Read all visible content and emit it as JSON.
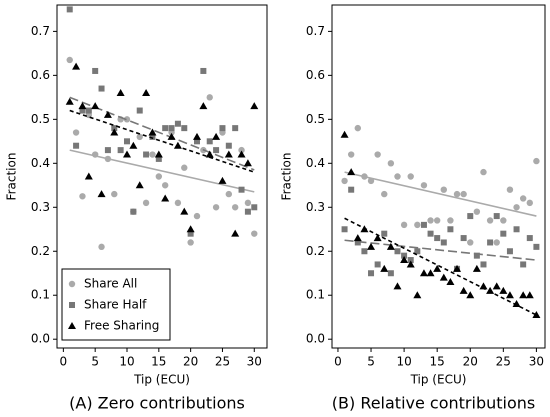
{
  "chart_data": [
    {
      "type": "scatter",
      "title": "(A) Zero contributions",
      "xlabel": "Tip (ECU)",
      "ylabel": "Fraction",
      "x": [
        1,
        2,
        3,
        4,
        5,
        6,
        7,
        8,
        9,
        10,
        11,
        12,
        13,
        14,
        15,
        16,
        17,
        18,
        19,
        20,
        21,
        22,
        23,
        24,
        25,
        26,
        27,
        28,
        29,
        30
      ],
      "xlim": [
        -1,
        32
      ],
      "xticks": [
        0,
        5,
        10,
        15,
        20,
        25,
        30
      ],
      "ylim": [
        -0.02,
        0.76
      ],
      "yticks": [
        {
          "value": 0,
          "label": "0.0"
        },
        0.1,
        0.2,
        0.3,
        0.4,
        0.5,
        0.6,
        0.7
      ],
      "legend": "lower left",
      "trend_x": [
        1,
        30
      ],
      "series": [
        {
          "name": "Share All",
          "color": "#aaaaaa",
          "marker": "circle",
          "dash": "solid",
          "values": [
            0.635,
            0.47,
            0.325,
            0.51,
            0.42,
            0.21,
            0.41,
            0.33,
            0.5,
            0.5,
            0.29,
            0.46,
            0.31,
            0.42,
            0.37,
            0.35,
            0.47,
            0.31,
            0.39,
            0.22,
            0.28,
            0.43,
            0.55,
            0.3,
            0.47,
            0.33,
            0.3,
            0.43,
            0.31,
            0.24
          ],
          "trend": [
            0.43,
            0.335
          ]
        },
        {
          "name": "Share Half",
          "color": "#777777",
          "marker": "square",
          "dash": "long",
          "values": [
            0.75,
            0.44,
            0.52,
            0.52,
            0.61,
            0.57,
            0.43,
            0.48,
            0.43,
            0.45,
            0.29,
            0.52,
            0.42,
            0.46,
            0.41,
            0.48,
            0.48,
            0.49,
            0.48,
            0.24,
            0.45,
            0.61,
            0.45,
            0.43,
            0.48,
            0.44,
            0.48,
            0.34,
            0.29,
            0.3
          ],
          "trend": [
            0.55,
            0.385
          ]
        },
        {
          "name": "Free Sharing",
          "color": "#000000",
          "marker": "triangle",
          "dash": "short",
          "values": [
            0.54,
            0.62,
            0.53,
            0.37,
            0.53,
            0.33,
            0.51,
            0.47,
            0.56,
            0.42,
            0.44,
            0.35,
            0.56,
            0.47,
            0.42,
            0.32,
            0.46,
            0.44,
            0.29,
            0.25,
            0.46,
            0.53,
            0.42,
            0.46,
            0.36,
            0.42,
            0.24,
            0.42,
            0.4,
            0.53
          ],
          "trend": [
            0.52,
            0.38
          ]
        }
      ]
    },
    {
      "type": "scatter",
      "title": "(B) Relative contributions",
      "xlabel": "Tip (ECU)",
      "ylabel": "Fraction",
      "x": [
        1,
        2,
        3,
        4,
        5,
        6,
        7,
        8,
        9,
        10,
        11,
        12,
        13,
        14,
        15,
        16,
        17,
        18,
        19,
        20,
        21,
        22,
        23,
        24,
        25,
        26,
        27,
        28,
        29,
        30
      ],
      "xlim": [
        -0.9,
        31.3
      ],
      "xticks": [
        0,
        5,
        10,
        15,
        20,
        25,
        30
      ],
      "ylim": [
        -0.02,
        0.76
      ],
      "yticks": [
        {
          "value": 0,
          "label": "0.0"
        },
        0.1,
        0.2,
        0.3,
        0.4,
        0.5,
        0.6,
        0.7
      ],
      "trend_x": [
        1,
        30
      ],
      "series": [
        {
          "name": "Share All",
          "color": "#aaaaaa",
          "marker": "circle",
          "dash": "solid",
          "values": [
            0.36,
            0.42,
            0.48,
            0.37,
            0.36,
            0.42,
            0.33,
            0.4,
            0.37,
            0.26,
            0.37,
            0.26,
            0.35,
            0.27,
            0.27,
            0.34,
            0.27,
            0.33,
            0.33,
            0.22,
            0.29,
            0.38,
            0.27,
            0.22,
            0.27,
            0.34,
            0.3,
            0.32,
            0.31,
            0.405
          ],
          "trend": [
            0.38,
            0.28
          ]
        },
        {
          "name": "Share Half",
          "color": "#777777",
          "marker": "square",
          "dash": "long",
          "values": [
            0.25,
            0.34,
            0.22,
            0.2,
            0.15,
            0.17,
            0.24,
            0.15,
            0.2,
            0.19,
            0.18,
            0.2,
            0.26,
            0.24,
            0.23,
            0.22,
            0.25,
            0.16,
            0.23,
            0.28,
            0.19,
            0.17,
            0.22,
            0.28,
            0.24,
            0.2,
            0.25,
            0.17,
            0.23,
            0.21
          ],
          "trend": [
            0.225,
            0.18
          ]
        },
        {
          "name": "Free Sharing",
          "color": "#000000",
          "marker": "triangle",
          "dash": "short",
          "values": [
            0.465,
            0.38,
            0.23,
            0.25,
            0.21,
            0.23,
            0.16,
            0.21,
            0.12,
            0.18,
            0.17,
            0.1,
            0.15,
            0.15,
            0.16,
            0.14,
            0.13,
            0.16,
            0.11,
            0.1,
            0.16,
            0.12,
            0.11,
            0.12,
            0.11,
            0.1,
            0.08,
            0.1,
            0.1,
            0.055
          ],
          "trend": [
            0.275,
            0.055
          ]
        }
      ]
    }
  ]
}
